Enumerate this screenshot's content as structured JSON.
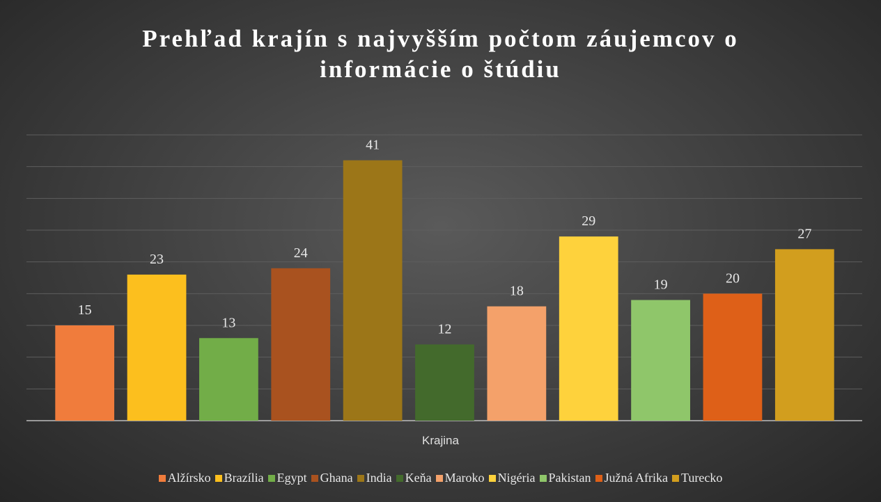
{
  "chart_data": {
    "type": "bar",
    "title": "Prehľad krajín s najvyšším počtom záujemcov o informácie o štúdiu",
    "x_label": "Krajina",
    "categories": [
      "Alžírsko",
      "Brazília",
      "Egypt",
      "Ghana",
      "India",
      "Keňa",
      "Maroko",
      "Nigéria",
      "Pakistan",
      "Južná Afrika",
      "Turecko"
    ],
    "values": [
      15,
      23,
      13,
      24,
      41,
      12,
      18,
      29,
      19,
      20,
      27
    ],
    "colors": [
      "#f07c3c",
      "#fcbf1e",
      "#72ad48",
      "#a9521f",
      "#9c7618",
      "#436a2c",
      "#f4a16a",
      "#fed23c",
      "#8fc66a",
      "#de6018",
      "#d29e1e"
    ],
    "ylim": [
      0,
      45
    ],
    "yticks": [
      0,
      5,
      10,
      15,
      20,
      25,
      30,
      35,
      40,
      45
    ],
    "grid": true,
    "legend": "bottom"
  }
}
